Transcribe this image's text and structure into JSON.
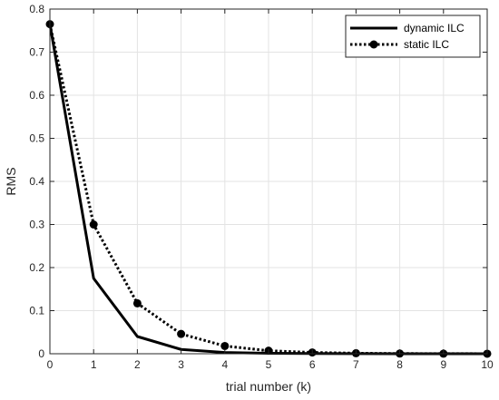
{
  "chart_data": {
    "type": "line",
    "xlabel": "trial number (k)",
    "ylabel": "RMS",
    "xlim": [
      0,
      10
    ],
    "ylim": [
      0,
      0.8
    ],
    "xticks": [
      0,
      1,
      2,
      3,
      4,
      5,
      6,
      7,
      8,
      9,
      10
    ],
    "yticks": [
      0,
      0.1,
      0.2,
      0.3,
      0.4,
      0.5,
      0.6,
      0.7,
      0.8
    ],
    "ytick_labels": [
      "0",
      "0.1",
      "0.2",
      "0.3",
      "0.4",
      "0.5",
      "0.6",
      "0.7",
      "0.8"
    ],
    "grid": true,
    "legend_position": "top-right",
    "x": [
      0,
      1,
      2,
      3,
      4,
      5,
      6,
      7,
      8,
      9,
      10
    ],
    "series": [
      {
        "name": "dynamic ILC",
        "values": [
          0.765,
          0.175,
          0.04,
          0.01,
          0.003,
          0.001,
          0.0005,
          0.0002,
          0.0001,
          0.0001,
          0.0001
        ],
        "line_style": "solid",
        "marker": "none",
        "color": "#000000"
      },
      {
        "name": "static ILC",
        "values": [
          0.765,
          0.3,
          0.117,
          0.046,
          0.018,
          0.007,
          0.003,
          0.0012,
          0.0005,
          0.0002,
          0.0001
        ],
        "line_style": "dotted",
        "marker": "circle",
        "color": "#000000"
      }
    ]
  }
}
